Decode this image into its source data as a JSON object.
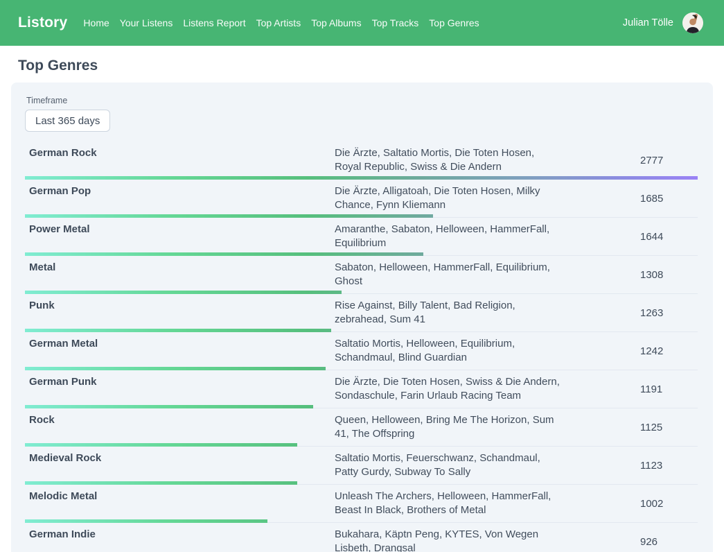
{
  "navbar": {
    "brand": "Listory",
    "items": [
      {
        "label": "Home"
      },
      {
        "label": "Your Listens"
      },
      {
        "label": "Listens Report"
      },
      {
        "label": "Top Artists"
      },
      {
        "label": "Top Albums"
      },
      {
        "label": "Top Tracks"
      },
      {
        "label": "Top Genres"
      }
    ],
    "user_name": "Julian Tölle",
    "background_color": "#47B573"
  },
  "page": {
    "title": "Top Genres"
  },
  "panel": {
    "timeframe_label": "Timeframe",
    "timeframe_value": "Last 365 days",
    "background_color": "#f1f5f9"
  },
  "chart_data": {
    "type": "bar",
    "orientation": "horizontal",
    "title": "Top Genres",
    "max_value": 2777,
    "bar_gradient": [
      "#80ECD2",
      "#56BF7D",
      "#7F9FC0",
      "#9A82F5"
    ],
    "rows": [
      {
        "genre": "German Rock",
        "artists": "Die Ärzte, Saltatio Mortis, Die Toten Hosen, Royal Republic, Swiss & Die Andern",
        "count": 2777
      },
      {
        "genre": "German Pop",
        "artists": "Die Ärzte, Alligatoah, Die Toten Hosen, Milky Chance, Fynn Kliemann",
        "count": 1685
      },
      {
        "genre": "Power Metal",
        "artists": "Amaranthe, Sabaton, Helloween, HammerFall, Equilibrium",
        "count": 1644
      },
      {
        "genre": "Metal",
        "artists": "Sabaton, Helloween, HammerFall, Equilibrium, Ghost",
        "count": 1308
      },
      {
        "genre": "Punk",
        "artists": "Rise Against, Billy Talent, Bad Religion, zebrahead, Sum 41",
        "count": 1263
      },
      {
        "genre": "German Metal",
        "artists": "Saltatio Mortis, Helloween, Equilibrium, Schandmaul, Blind Guardian",
        "count": 1242
      },
      {
        "genre": "German Punk",
        "artists": "Die Ärzte, Die Toten Hosen, Swiss & Die Andern, Sondaschule, Farin Urlaub Racing Team",
        "count": 1191
      },
      {
        "genre": "Rock",
        "artists": "Queen, Helloween, Bring Me The Horizon, Sum 41, The Offspring",
        "count": 1125
      },
      {
        "genre": "Medieval Rock",
        "artists": "Saltatio Mortis, Feuerschwanz, Schandmaul, Patty Gurdy, Subway To Sally",
        "count": 1123
      },
      {
        "genre": "Melodic Metal",
        "artists": "Unleash The Archers, Helloween, HammerFall, Beast In Black, Brothers of Metal",
        "count": 1002
      },
      {
        "genre": "German Indie",
        "artists": "Bukahara, Käptn Peng, KYTES, Von Wegen Lisbeth, Drangsal",
        "count": 926
      }
    ]
  }
}
